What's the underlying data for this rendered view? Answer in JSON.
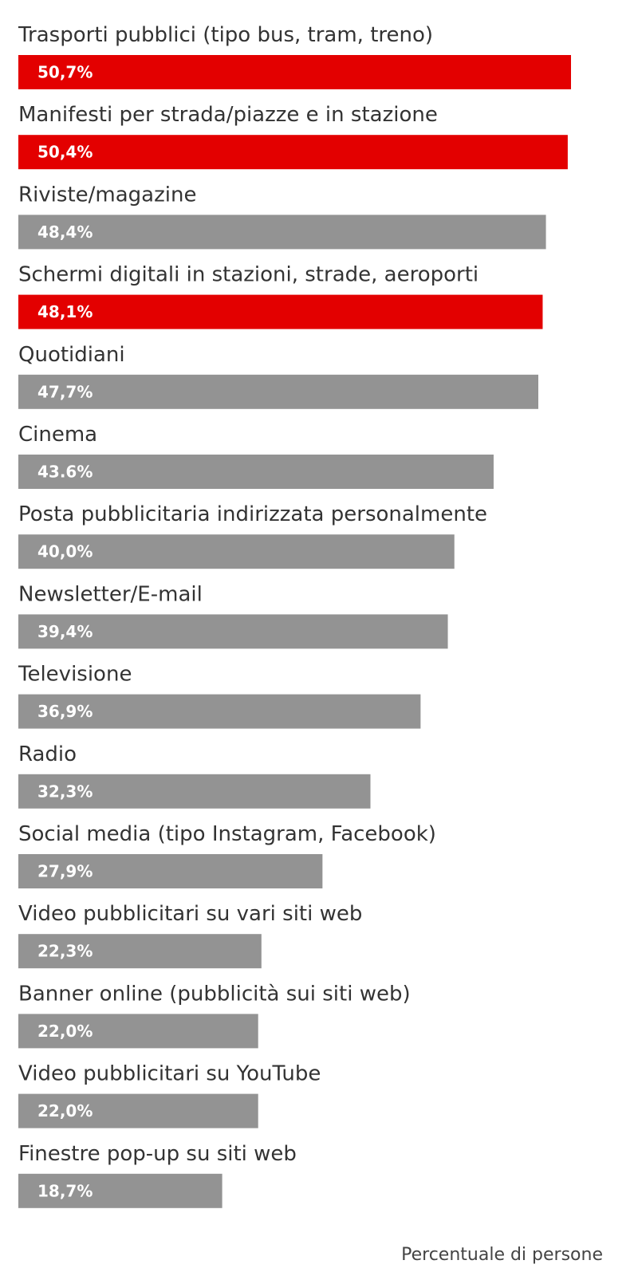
{
  "chart_data": {
    "type": "bar",
    "orientation": "horizontal",
    "categories": [
      "Trasporti pubblici (tipo bus, tram, treno)",
      "Manifesti per strada/piazze e in stazione",
      "Riviste/magazine",
      "Schermi digitali in stazioni, strade, aeroporti",
      "Quotidiani",
      "Cinema",
      "Posta pubblicitaria indirizzata personalmente",
      "Newsletter/E-mail",
      "Televisione",
      "Radio",
      "Social media (tipo Instagram, Facebook)",
      "Video pubblicitari su vari siti web",
      "Banner online (pubblicità sui siti web)",
      "Video pubblicitari su YouTube",
      "Finestre pop-up su siti web"
    ],
    "values": [
      50.7,
      50.4,
      48.4,
      48.1,
      47.7,
      43.6,
      40.0,
      39.4,
      36.9,
      32.3,
      27.9,
      22.3,
      22.0,
      22.0,
      18.7
    ],
    "value_labels": [
      "50,7%",
      "50,4%",
      "48,4%",
      "48,1%",
      "47,7%",
      "43.6%",
      "40,0%",
      "39,4%",
      "36,9%",
      "32,3%",
      "27,9%",
      "22,3%",
      "22,0%",
      "22,0%",
      "18,7%"
    ],
    "highlighted": [
      true,
      true,
      false,
      true,
      false,
      false,
      false,
      false,
      false,
      false,
      false,
      false,
      false,
      false,
      false
    ],
    "colors": {
      "highlight": "#e30000",
      "default": "#939393"
    },
    "xlim": [
      0,
      50.7
    ],
    "grid": false,
    "legend": "none",
    "note": "Percentuale di persone"
  }
}
